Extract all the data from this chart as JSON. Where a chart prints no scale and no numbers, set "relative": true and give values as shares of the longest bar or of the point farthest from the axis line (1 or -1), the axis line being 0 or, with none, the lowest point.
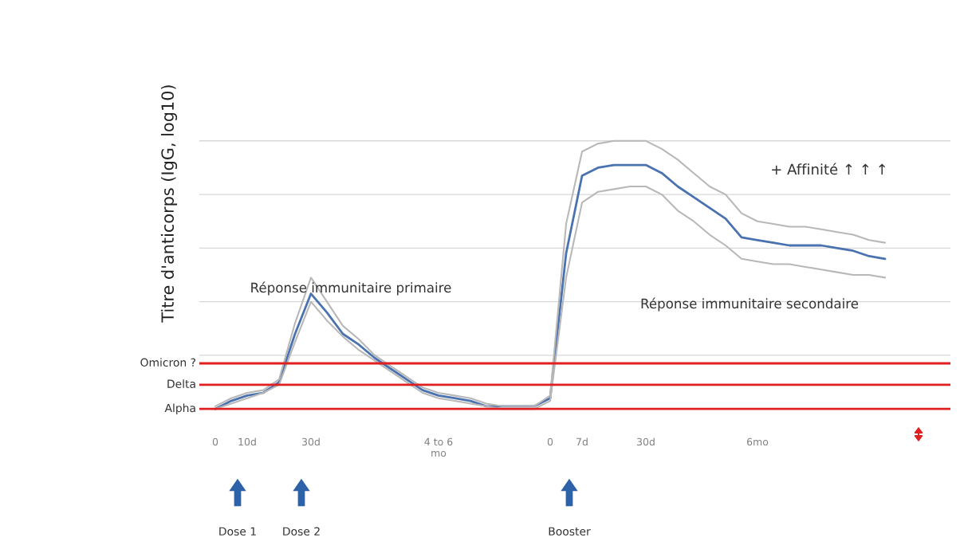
{
  "chart_data": {
    "type": "line",
    "relative": true,
    "ylabel": "Titre d'anticorps (IgG, log10)",
    "categories": [
      "0",
      null,
      "10d",
      null,
      null,
      null,
      "30d",
      null,
      null,
      null,
      null,
      null,
      null,
      null,
      "4 to 6\nmo",
      null,
      null,
      null,
      null,
      null,
      null,
      "0",
      null,
      "7d",
      null,
      null,
      null,
      "30d",
      null,
      null,
      null,
      null,
      null,
      null,
      "6mo",
      null,
      null,
      null,
      null,
      null,
      null,
      null,
      null
    ],
    "series": [
      {
        "color": "#4a72b0",
        "values": [
          0.0,
          0.03,
          0.05,
          0.06,
          0.1,
          0.28,
          0.43,
          0.36,
          0.28,
          0.24,
          0.19,
          0.15,
          0.11,
          0.07,
          0.05,
          0.04,
          0.03,
          0.01,
          0.01,
          0.01,
          0.01,
          0.04,
          0.58,
          0.87,
          0.9,
          0.91,
          0.91,
          0.91,
          0.88,
          0.83,
          0.79,
          0.75,
          0.71,
          0.64,
          0.63,
          0.62,
          0.61,
          0.61,
          0.61,
          0.6,
          0.59,
          0.57,
          0.56
        ]
      },
      {
        "color": "#b8b8b8",
        "values": [
          0.01,
          0.04,
          0.06,
          0.07,
          0.11,
          0.32,
          0.49,
          0.4,
          0.31,
          0.26,
          0.2,
          0.16,
          0.12,
          0.08,
          0.06,
          0.05,
          0.04,
          0.02,
          0.01,
          0.01,
          0.01,
          0.05,
          0.69,
          0.96,
          0.99,
          1.0,
          1.0,
          1.0,
          0.97,
          0.93,
          0.88,
          0.83,
          0.8,
          0.73,
          0.7,
          0.69,
          0.68,
          0.68,
          0.67,
          0.66,
          0.65,
          0.63,
          0.62
        ]
      },
      {
        "color": "#b8b8b8",
        "values": [
          0.0,
          0.02,
          0.04,
          0.06,
          0.09,
          0.25,
          0.4,
          0.33,
          0.27,
          0.22,
          0.18,
          0.14,
          0.1,
          0.06,
          0.04,
          0.03,
          0.02,
          0.01,
          0.0,
          0.0,
          0.0,
          0.03,
          0.49,
          0.77,
          0.81,
          0.82,
          0.83,
          0.83,
          0.8,
          0.74,
          0.7,
          0.65,
          0.61,
          0.56,
          0.55,
          0.54,
          0.54,
          0.53,
          0.52,
          0.51,
          0.5,
          0.5,
          0.49
        ]
      }
    ],
    "grid": "y",
    "ref_lines": [
      {
        "axis": "y",
        "value": 0.17,
        "label": "Omicron ?",
        "color": "#e02020"
      },
      {
        "axis": "y",
        "value": 0.09,
        "label": "Delta",
        "color": "#e02020"
      },
      {
        "axis": "y",
        "value": 0.0,
        "label": "Alpha",
        "color": "#e02020"
      }
    ],
    "annotations": [
      "Réponse immunitaire primaire",
      "Réponse immunitaire secondaire",
      "+ Affinité ↑ ↑ ↑",
      "Dose 1",
      "Dose 2",
      "Booster"
    ]
  }
}
